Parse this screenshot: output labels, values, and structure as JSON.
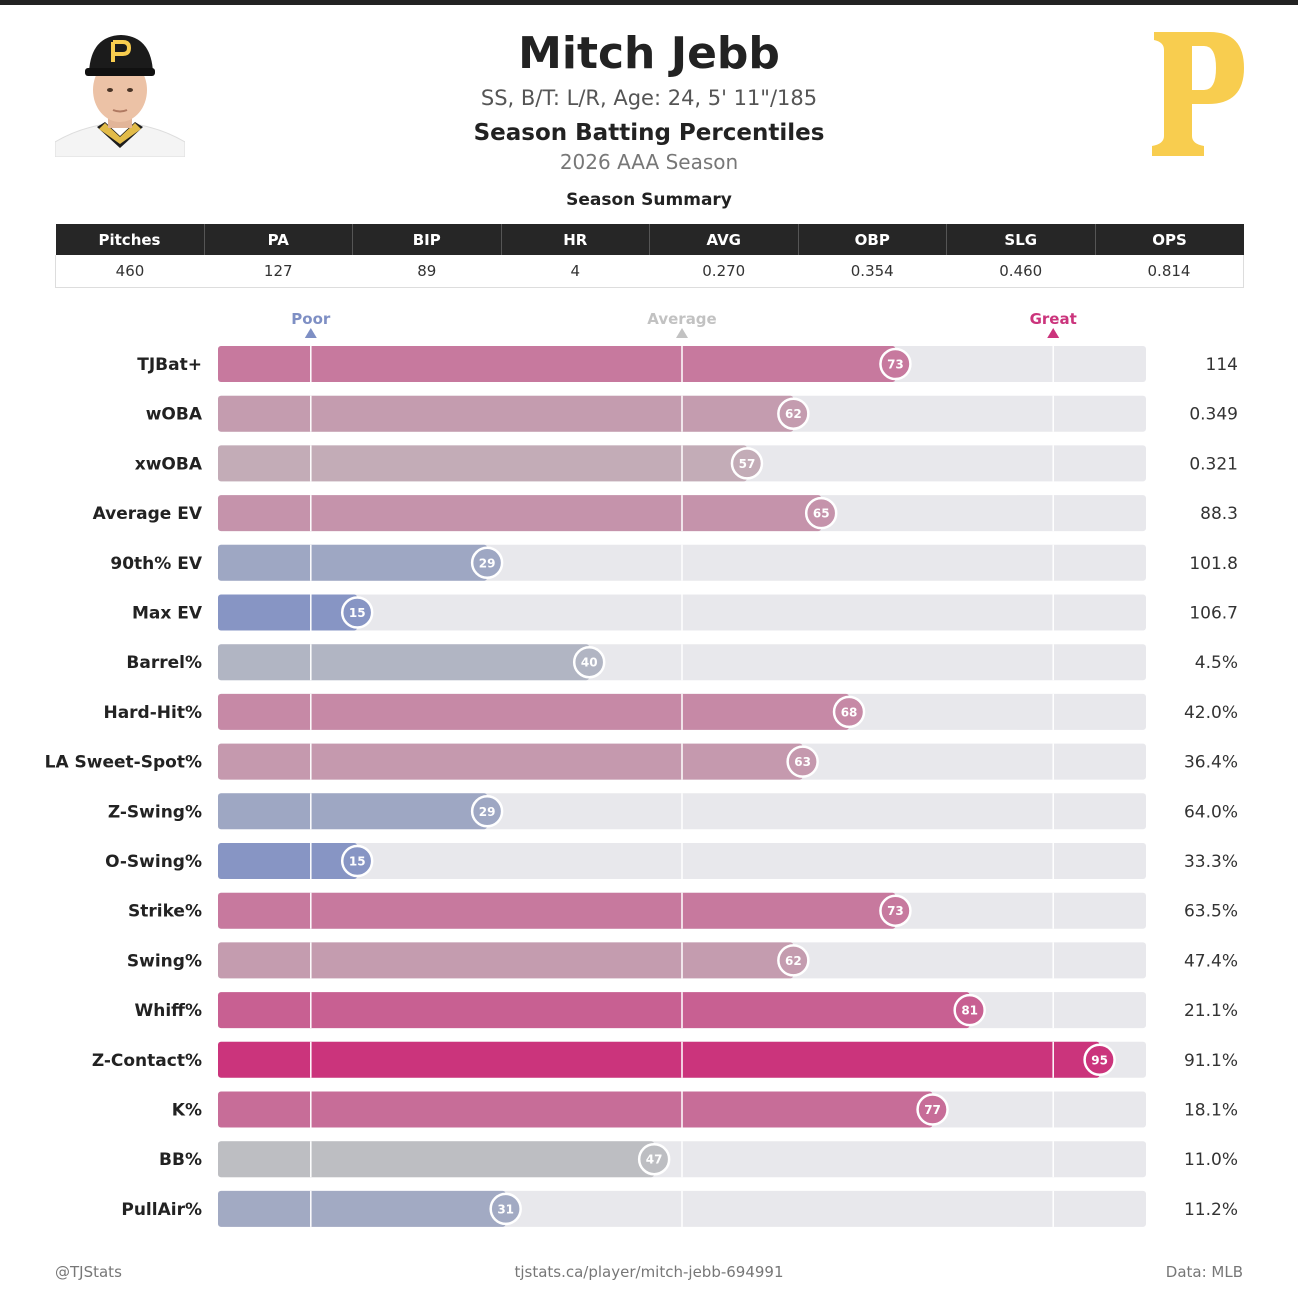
{
  "header": {
    "player_name": "Mitch Jebb",
    "player_info": "SS, B/T: L/R, Age: 24, 5' 11\"/185",
    "title": "Season Batting Percentiles",
    "season": "2026 AAA Season",
    "summary_title": "Season Summary",
    "avatar_icon": "player-headshot-icon",
    "logo_icon": "pirates-p-logo-icon"
  },
  "summary": {
    "columns": [
      "Pitches",
      "PA",
      "BIP",
      "HR",
      "AVG",
      "OBP",
      "SLG",
      "OPS"
    ],
    "values": [
      "460",
      "127",
      "89",
      "4",
      "0.270",
      "0.354",
      "0.460",
      "0.814"
    ]
  },
  "colors": {
    "poor": "#7e8fc4",
    "average": "#c2c2c2",
    "great": "#cb347c",
    "track": "#e8e8ec",
    "logo": "#f8cd4f"
  },
  "chart_data": {
    "type": "bar",
    "orientation": "horizontal",
    "xlim": [
      0,
      100
    ],
    "markers": [
      {
        "label": "Poor",
        "value": 10,
        "color": "#7e8fc4"
      },
      {
        "label": "Average",
        "value": 50,
        "color": "#c2c2c2"
      },
      {
        "label": "Great",
        "value": 90,
        "color": "#cb347c"
      }
    ],
    "categories": [
      "TJBat+",
      "wOBA",
      "xwOBA",
      "Average EV",
      "90th% EV",
      "Max EV",
      "Barrel%",
      "Hard-Hit%",
      "LA Sweet-Spot%",
      "Z-Swing%",
      "O-Swing%",
      "Strike%",
      "Swing%",
      "Whiff%",
      "Z-Contact%",
      "K%",
      "BB%",
      "PullAir%"
    ],
    "values": [
      73,
      62,
      57,
      65,
      29,
      15,
      40,
      68,
      63,
      29,
      15,
      73,
      62,
      81,
      95,
      77,
      47,
      31
    ],
    "stat_values": [
      "114",
      "0.349",
      "0.321",
      "88.3",
      "101.8",
      "106.7",
      "4.5%",
      "42.0%",
      "36.4%",
      "64.0%",
      "33.3%",
      "63.5%",
      "47.4%",
      "21.1%",
      "91.1%",
      "18.1%",
      "11.0%",
      "11.2%"
    ]
  },
  "footer": {
    "left": "@TJStats",
    "center": "tjstats.ca/player/mitch-jebb-694991",
    "right": "Data: MLB"
  }
}
